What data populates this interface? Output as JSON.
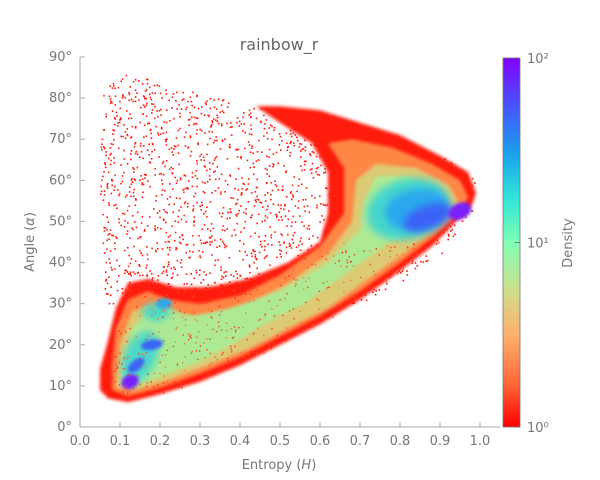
{
  "chart_data": {
    "type": "heatmap",
    "title": "rainbow_r",
    "xlabel": "Entropy (H)",
    "ylabel": "Angle (α)",
    "x_ticks": [
      0.0,
      0.1,
      0.2,
      0.3,
      0.4,
      0.5,
      0.6,
      0.7,
      0.8,
      0.9,
      1.0
    ],
    "x_tick_labels": [
      "0.0",
      "0.1",
      "0.2",
      "0.3",
      "0.4",
      "0.5",
      "0.6",
      "0.7",
      "0.8",
      "0.9",
      "1.0"
    ],
    "y_ticks": [
      0,
      10,
      20,
      30,
      40,
      50,
      60,
      70,
      80,
      90
    ],
    "y_tick_labels": [
      "0°",
      "10°",
      "20°",
      "30°",
      "40°",
      "50°",
      "60°",
      "70°",
      "80°",
      "90°"
    ],
    "xlim": [
      0.0,
      1.05
    ],
    "ylim": [
      0,
      90
    ],
    "colormap": "rainbow_r",
    "colorbar": {
      "label": "Density",
      "scale": "log",
      "range": [
        1,
        100
      ],
      "tick_labels": [
        "10⁰",
        "10¹",
        "10²"
      ],
      "tick_values": [
        1,
        10,
        100
      ]
    },
    "density_features": [
      {
        "name": "low-entropy-peak",
        "x": 0.12,
        "y": 11,
        "density": 100
      },
      {
        "name": "secondary-peak",
        "x": 0.17,
        "y": 20,
        "density": 60
      },
      {
        "name": "left-cluster",
        "x": 0.21,
        "y": 30,
        "density": 20
      },
      {
        "name": "high-entropy-core",
        "x": 0.85,
        "y": 52,
        "density": 35
      },
      {
        "name": "high-entropy-peak",
        "x": 0.95,
        "y": 52,
        "density": 100
      }
    ],
    "grid": false
  }
}
